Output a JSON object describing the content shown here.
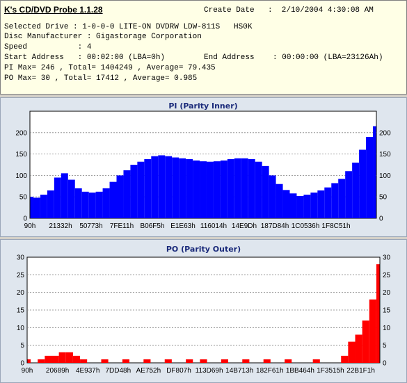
{
  "header": {
    "app_title": "K's CD/DVD Probe 1.1.28",
    "create_date_label": "Create Date",
    "create_date_value": ":  2/10/2004 4:30:08 AM",
    "selected_drive": "Selected Drive : 1-0-0-0 LITE-ON DVDRW LDW-811S   HS0K",
    "disc_manufacturer": "Disc Manufacturer : Gigastorage Corporation",
    "speed": "Speed           : 4",
    "start_address": "Start Address   : 00:02:00 (LBA=0h)",
    "end_address": "End Address    : 00:00:00 (LBA=23126Ah)",
    "pi_summary": "PI Max= 246 , Total= 1404249 , Average= 79.435",
    "po_summary": "PO Max= 30 , Total= 17412 , Average= 0.985"
  },
  "chart_data": [
    {
      "type": "area",
      "title": "PI (Parity Inner)",
      "ylim": [
        0,
        250
      ],
      "yticks": [
        "0",
        "50",
        "100",
        "150",
        "200"
      ],
      "x_tick_labels": [
        "90h",
        "21332h",
        "50773h",
        "7FE11h",
        "B06F5h",
        "E1E63h",
        "116014h",
        "14E9Dh",
        "187D84h",
        "1C0536h",
        "1F8C51h"
      ],
      "x": [
        0,
        0.02,
        0.04,
        0.06,
        0.08,
        0.1,
        0.12,
        0.14,
        0.16,
        0.18,
        0.2,
        0.22,
        0.24,
        0.26,
        0.28,
        0.3,
        0.32,
        0.34,
        0.36,
        0.38,
        0.4,
        0.42,
        0.44,
        0.46,
        0.48,
        0.5,
        0.52,
        0.54,
        0.56,
        0.58,
        0.6,
        0.62,
        0.64,
        0.66,
        0.68,
        0.7,
        0.72,
        0.74,
        0.76,
        0.78,
        0.8,
        0.82,
        0.84,
        0.86,
        0.88,
        0.9,
        0.92,
        0.94,
        0.96,
        0.98,
        1
      ],
      "values": [
        50,
        48,
        55,
        65,
        95,
        105,
        90,
        70,
        62,
        60,
        62,
        70,
        85,
        100,
        112,
        125,
        132,
        138,
        145,
        147,
        145,
        142,
        140,
        138,
        135,
        133,
        132,
        133,
        135,
        138,
        140,
        140,
        138,
        132,
        122,
        100,
        80,
        66,
        58,
        52,
        55,
        60,
        65,
        72,
        82,
        92,
        110,
        130,
        160,
        190,
        215
      ]
    },
    {
      "type": "bar",
      "title": "PO (Parity Outer)",
      "ylim": [
        0,
        30
      ],
      "yticks": [
        "0",
        "5",
        "10",
        "15",
        "20",
        "25",
        "30"
      ],
      "x_tick_labels": [
        "90h",
        "20689h",
        "4E937h",
        "7DD48h",
        "AE752h",
        "DF807h",
        "113D69h",
        "14B713h",
        "182F61h",
        "1BB464h",
        "1F3515h",
        "22B1F1h"
      ],
      "x": [
        0,
        0.02,
        0.04,
        0.06,
        0.08,
        0.1,
        0.12,
        0.14,
        0.16,
        0.18,
        0.2,
        0.22,
        0.24,
        0.26,
        0.28,
        0.3,
        0.32,
        0.34,
        0.36,
        0.38,
        0.4,
        0.42,
        0.44,
        0.46,
        0.48,
        0.5,
        0.52,
        0.54,
        0.56,
        0.58,
        0.6,
        0.62,
        0.64,
        0.66,
        0.68,
        0.7,
        0.72,
        0.74,
        0.76,
        0.78,
        0.8,
        0.82,
        0.84,
        0.86,
        0.88,
        0.9,
        0.92,
        0.94,
        0.96,
        0.98,
        1
      ],
      "values": [
        1,
        0,
        1,
        2,
        2,
        3,
        3,
        2,
        1,
        0,
        0,
        1,
        0,
        0,
        1,
        0,
        0,
        1,
        0,
        0,
        1,
        0,
        0,
        1,
        0,
        1,
        0,
        0,
        1,
        0,
        0,
        1,
        0,
        0,
        1,
        0,
        0,
        1,
        0,
        0,
        0,
        1,
        0,
        0,
        0,
        2,
        6,
        8,
        12,
        18,
        28
      ]
    }
  ],
  "colors": {
    "pi_fill": "#0000ff",
    "po_fill": "#ff0000",
    "chart_bg": "#ffffff",
    "title_color": "#1a2a7a"
  }
}
